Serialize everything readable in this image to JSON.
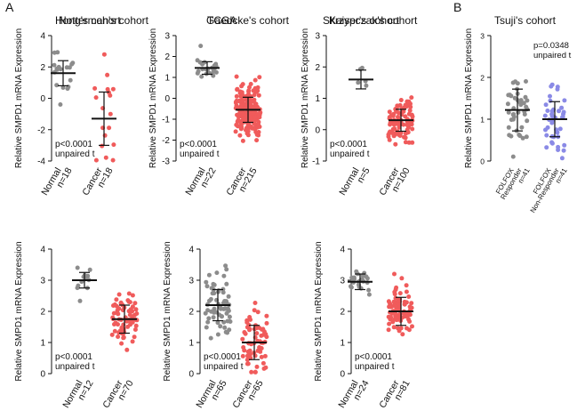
{
  "panel_labels": {
    "a": "A",
    "b": "B"
  },
  "chart_data": [
    {
      "id": "notterman",
      "type": "scatter",
      "title": "Notterman's cohort",
      "ylabel": "Relative SMPD1 mRNA Expression",
      "ylim": [
        -4,
        4
      ],
      "yticks": [
        -4,
        -2,
        0,
        2,
        4
      ],
      "categories": [
        "Normal",
        "Cancer"
      ],
      "category_n": [
        "n=18",
        "n=18"
      ],
      "annotation": [
        "p<0.0001",
        "unpaired t"
      ],
      "annotation_position": "bottom-left",
      "series": [
        {
          "name": "Normal",
          "mean": 1.6,
          "sd": 0.8,
          "n": 18,
          "color": "#8c8c8c"
        },
        {
          "name": "Cancer",
          "mean": -1.3,
          "sd": 1.7,
          "n": 18,
          "color": "#f05b5b"
        }
      ]
    },
    {
      "id": "tcga",
      "type": "scatter",
      "title": "TCGA",
      "ylabel": "Relative SMPD1 mRNA Expression",
      "ylim": [
        -3,
        3
      ],
      "yticks": [
        -3,
        -2,
        -1,
        0,
        1,
        2,
        3
      ],
      "categories": [
        "Normal",
        "Cancer"
      ],
      "category_n": [
        "n=22",
        "n=215"
      ],
      "annotation": [
        "p<0.0001",
        "unpaired t"
      ],
      "annotation_position": "bottom-left",
      "series": [
        {
          "name": "Normal",
          "mean": 1.45,
          "sd": 0.3,
          "n": 22,
          "color": "#8c8c8c"
        },
        {
          "name": "Cancer",
          "mean": -0.55,
          "sd": 0.6,
          "n": 215,
          "color": "#f05b5b"
        }
      ]
    },
    {
      "id": "kaiser",
      "type": "scatter",
      "title": "Kaiser's cohort",
      "ylabel": "Relative SMPD1 mRNA Expression",
      "ylim": [
        -1,
        3
      ],
      "yticks": [
        -1,
        0,
        1,
        2,
        3
      ],
      "categories": [
        "Normal",
        "Cancer"
      ],
      "category_n": [
        "n=5",
        "n=100"
      ],
      "annotation": [
        "p<0.0001",
        "unpaired t"
      ],
      "annotation_position": "bottom-left",
      "series": [
        {
          "name": "Normal",
          "mean": 1.6,
          "sd": 0.3,
          "n": 5,
          "color": "#8c8c8c"
        },
        {
          "name": "Cancer",
          "mean": 0.3,
          "sd": 0.35,
          "n": 100,
          "color": "#f05b5b"
        }
      ]
    },
    {
      "id": "tsuji",
      "type": "scatter",
      "title": "Tsuji's cohort",
      "ylabel": "Relative SMPD1 mRNA Expression",
      "ylim": [
        0,
        3
      ],
      "yticks": [
        0,
        1,
        2,
        3
      ],
      "categories": [
        "FOLFOX Responder",
        "FOLFOX Non-Responder"
      ],
      "category_n": [
        "n=41",
        "n=41"
      ],
      "annotation": [
        "p=0.0348",
        "unpaired t"
      ],
      "annotation_position": "top-right",
      "series": [
        {
          "name": "FOLFOX Responder",
          "mean": 1.22,
          "sd": 0.5,
          "n": 41,
          "color": "#8c8c8c"
        },
        {
          "name": "FOLFOX Non-Responder",
          "mean": 1.0,
          "sd": 0.42,
          "n": 41,
          "color": "#8a8ae6"
        }
      ]
    },
    {
      "id": "hong",
      "type": "scatter",
      "title": "Hong's cohort",
      "ylabel": "Relative SMPD1 mRNA Expression",
      "ylim": [
        0,
        4
      ],
      "yticks": [
        0,
        1,
        2,
        3,
        4
      ],
      "categories": [
        "Normal",
        "Cancer"
      ],
      "category_n": [
        "n=12",
        "n=70"
      ],
      "annotation": [
        "p<0.0001",
        "unpaired t"
      ],
      "annotation_position": "bottom-left",
      "series": [
        {
          "name": "Normal",
          "mean": 3.0,
          "sd": 0.25,
          "n": 12,
          "color": "#8c8c8c"
        },
        {
          "name": "Cancer",
          "mean": 1.75,
          "sd": 0.45,
          "n": 70,
          "color": "#f05b5b"
        }
      ]
    },
    {
      "id": "gaedcke",
      "type": "scatter",
      "title": "Gaedcke's cohort",
      "ylabel": "Relative SMPD1 mRNA Expression",
      "ylim": [
        0,
        4
      ],
      "yticks": [
        0,
        1,
        2,
        3,
        4
      ],
      "categories": [
        "Normal",
        "Cancer"
      ],
      "category_n": [
        "n=65",
        "n=65"
      ],
      "annotation": [
        "p<0.0001",
        "unpaired t"
      ],
      "annotation_position": "bottom-left",
      "series": [
        {
          "name": "Normal",
          "mean": 2.2,
          "sd": 0.5,
          "n": 65,
          "color": "#8c8c8c"
        },
        {
          "name": "Cancer",
          "mean": 1.0,
          "sd": 0.55,
          "n": 65,
          "color": "#f05b5b"
        }
      ]
    },
    {
      "id": "skrzypczak",
      "type": "scatter",
      "title": "Skrzypczak's cohort",
      "ylabel": "Relative SMPD1 mRNA Expression",
      "ylim": [
        0,
        4
      ],
      "yticks": [
        0,
        1,
        2,
        3,
        4
      ],
      "categories": [
        "Normal",
        "Cancer"
      ],
      "category_n": [
        "n=24",
        "n=81"
      ],
      "annotation": [
        "p<0.0001",
        "unpaired t"
      ],
      "annotation_position": "bottom-left",
      "series": [
        {
          "name": "Normal",
          "mean": 2.95,
          "sd": 0.25,
          "n": 24,
          "color": "#8c8c8c"
        },
        {
          "name": "Cancer",
          "mean": 2.0,
          "sd": 0.45,
          "n": 81,
          "color": "#f05b5b"
        }
      ]
    }
  ]
}
